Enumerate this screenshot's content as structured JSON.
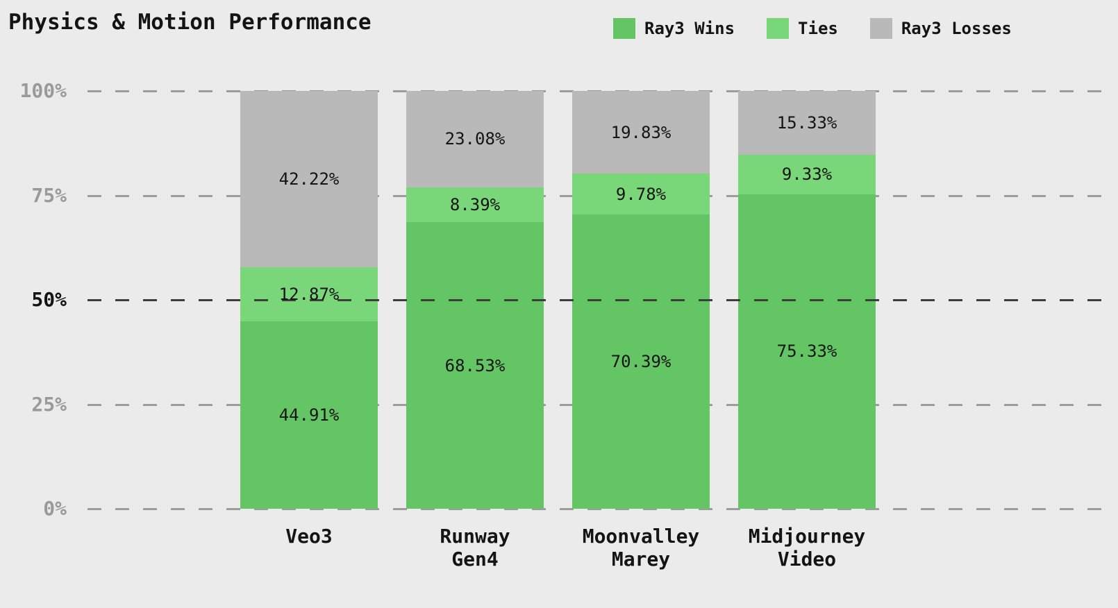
{
  "header": {
    "title": "Physics & Motion Performance"
  },
  "legend": {
    "items": [
      {
        "label": "Ray3 Wins",
        "color": "#64c564",
        "icon": "legend-swatch-wins"
      },
      {
        "label": "Ties",
        "color": "#79d779",
        "icon": "legend-swatch-ties"
      },
      {
        "label": "Ray3 Losses",
        "color": "#b9b9b9",
        "icon": "legend-swatch-losses"
      }
    ]
  },
  "chart_data": {
    "type": "bar",
    "stacked": true,
    "title": "Physics & Motion Performance",
    "categories": [
      "Veo3",
      "Runway Gen4",
      "Moonvalley Marey",
      "Midjourney Video"
    ],
    "series": [
      {
        "name": "Ray3 Wins",
        "color": "#64c564",
        "values": [
          44.91,
          68.53,
          70.39,
          75.33
        ]
      },
      {
        "name": "Ties",
        "color": "#79d779",
        "values": [
          12.87,
          8.39,
          9.78,
          9.33
        ]
      },
      {
        "name": "Ray3 Losses",
        "color": "#b9b9b9",
        "values": [
          42.22,
          23.08,
          19.83,
          15.33
        ]
      }
    ],
    "value_label_suffix": "%",
    "value_label_decimals": 2,
    "xlabel": "",
    "ylabel": "",
    "ylim": [
      0,
      100
    ],
    "yticks": [
      {
        "label": "0%",
        "value": 0,
        "emphasis": false
      },
      {
        "label": "25%",
        "value": 25,
        "emphasis": false
      },
      {
        "label": "50%",
        "value": 50,
        "emphasis": true
      },
      {
        "label": "75%",
        "value": 75,
        "emphasis": false
      },
      {
        "label": "100%",
        "value": 100,
        "emphasis": false
      }
    ],
    "grid": {
      "orientation": "horizontal",
      "style": "dashed",
      "light_color": "#9c9c9c",
      "emphasis_color": "#3d3d3d",
      "light_lines_behind_bars": true,
      "emphasis_line_in_front_of_bars": true
    },
    "legend_position": "top-right",
    "background_color": "#ebebeb"
  }
}
